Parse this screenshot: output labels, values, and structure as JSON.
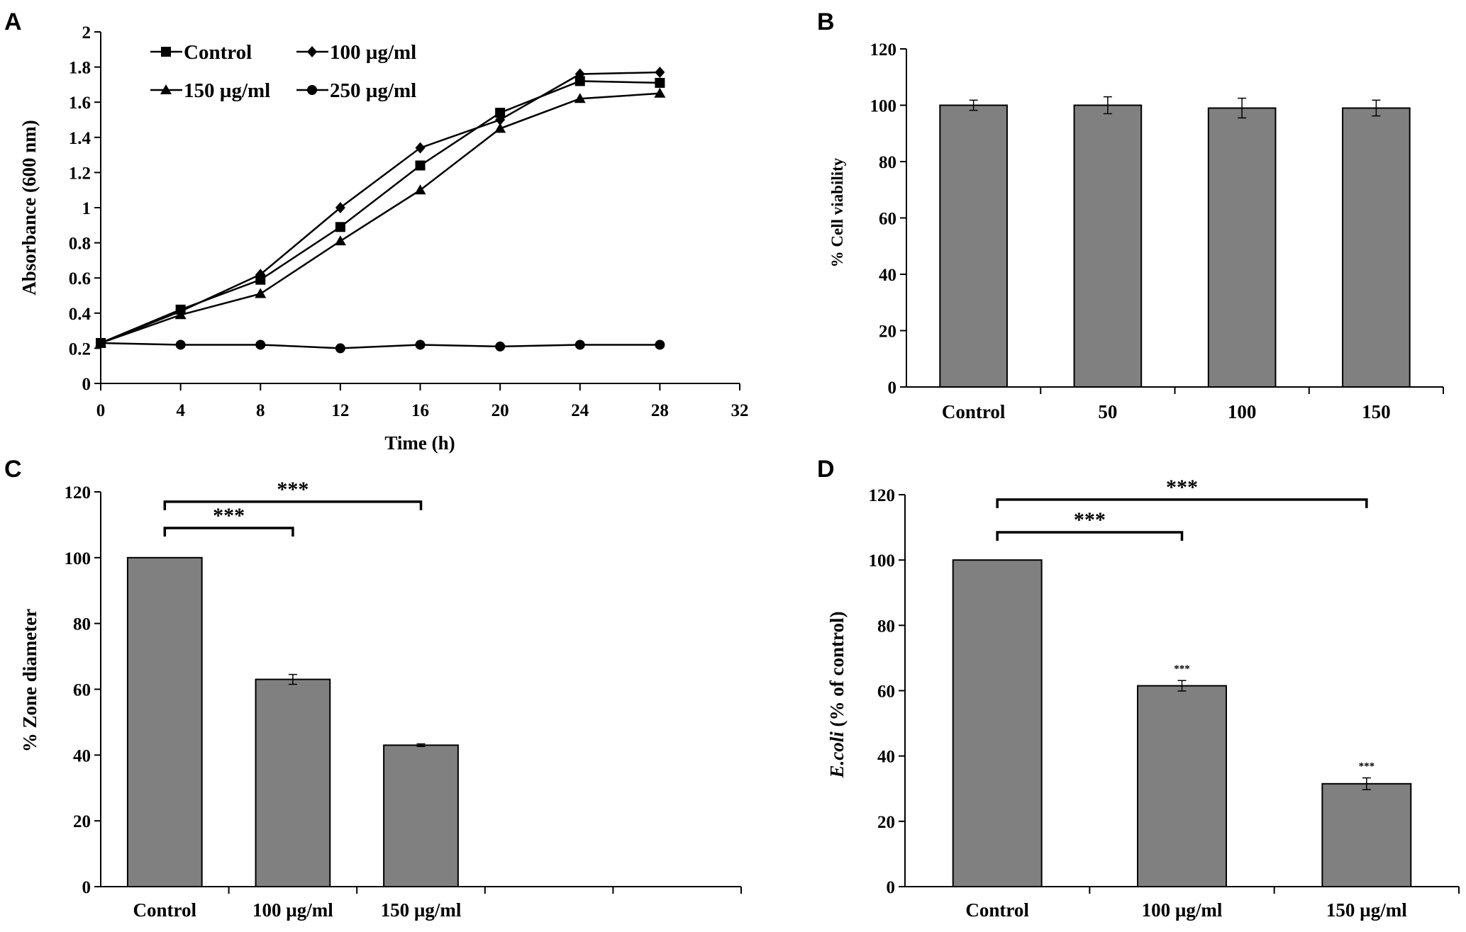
{
  "chart_data": [
    {
      "panel": "A",
      "type": "line",
      "xlabel": "Time (h)",
      "ylabel": "Absorbance (600 nm)",
      "xlim": [
        0,
        32
      ],
      "ylim": [
        0,
        2
      ],
      "xticks": [
        "0",
        "4",
        "8",
        "12",
        "16",
        "20",
        "24",
        "28",
        "32"
      ],
      "yticks": [
        "0",
        "0.2",
        "0.4",
        "0.6",
        "0.8",
        "1",
        "1.2",
        "1.4",
        "1.6",
        "1.8",
        "2"
      ],
      "x": [
        0,
        4,
        8,
        12,
        16,
        20,
        24,
        28
      ],
      "series": [
        {
          "name": "Control",
          "marker": "square",
          "values": [
            0.23,
            0.42,
            0.59,
            0.89,
            1.24,
            1.54,
            1.72,
            1.71
          ]
        },
        {
          "name": "100 µg/ml",
          "marker": "diamond",
          "values": [
            0.23,
            0.41,
            0.62,
            1.0,
            1.34,
            1.5,
            1.76,
            1.77
          ]
        },
        {
          "name": "150 µg/ml",
          "marker": "triangle",
          "values": [
            0.23,
            0.39,
            0.51,
            0.81,
            1.1,
            1.45,
            1.62,
            1.65
          ]
        },
        {
          "name": "250 µg/ml",
          "marker": "circle",
          "values": [
            0.23,
            0.22,
            0.22,
            0.2,
            0.22,
            0.21,
            0.22,
            0.22
          ]
        }
      ]
    },
    {
      "panel": "B",
      "type": "bar",
      "ylabel": "% Cell viability",
      "ylim": [
        0,
        120
      ],
      "yticks": [
        "0",
        "20",
        "40",
        "60",
        "80",
        "100",
        "120"
      ],
      "categories": [
        "Control",
        "50",
        "100",
        "150"
      ],
      "values": [
        100,
        100,
        99,
        99
      ],
      "errors": [
        1.8,
        3.0,
        3.5,
        2.8
      ]
    },
    {
      "panel": "C",
      "type": "bar",
      "ylabel": "% Zone diameter",
      "ylim": [
        0,
        120
      ],
      "yticks": [
        "0",
        "20",
        "40",
        "60",
        "80",
        "100",
        "120"
      ],
      "categories": [
        "Control",
        "100 µg/ml",
        "150 µg/ml",
        "",
        ""
      ],
      "values": [
        100,
        63,
        43,
        null,
        null
      ],
      "errors": [
        0,
        1.5,
        0.4,
        null,
        null
      ],
      "significance": [
        {
          "from": 0,
          "to": 1,
          "label": "***",
          "level": 109
        },
        {
          "from": 0,
          "to": 2,
          "label": "***",
          "level": 117
        }
      ]
    },
    {
      "panel": "D",
      "type": "bar",
      "ylabel_italic": "E.coli",
      "ylabel_rest": " (% of control)",
      "ylim": [
        0,
        120
      ],
      "yticks": [
        "0",
        "20",
        "40",
        "60",
        "80",
        "100",
        "120"
      ],
      "categories": [
        "Control",
        "100 µg/ml",
        "150 µg/ml"
      ],
      "values": [
        100,
        61.5,
        31.5
      ],
      "errors": [
        0,
        1.6,
        1.8
      ],
      "bar_labels": [
        "",
        "***",
        "***"
      ],
      "significance": [
        {
          "from": 0,
          "to": 1,
          "label": "***",
          "level": 108.5
        },
        {
          "from": 0,
          "to": 2,
          "label": "***",
          "level": 118.5
        }
      ]
    }
  ],
  "colors": {
    "bar": "#808080",
    "line": "#000000"
  }
}
